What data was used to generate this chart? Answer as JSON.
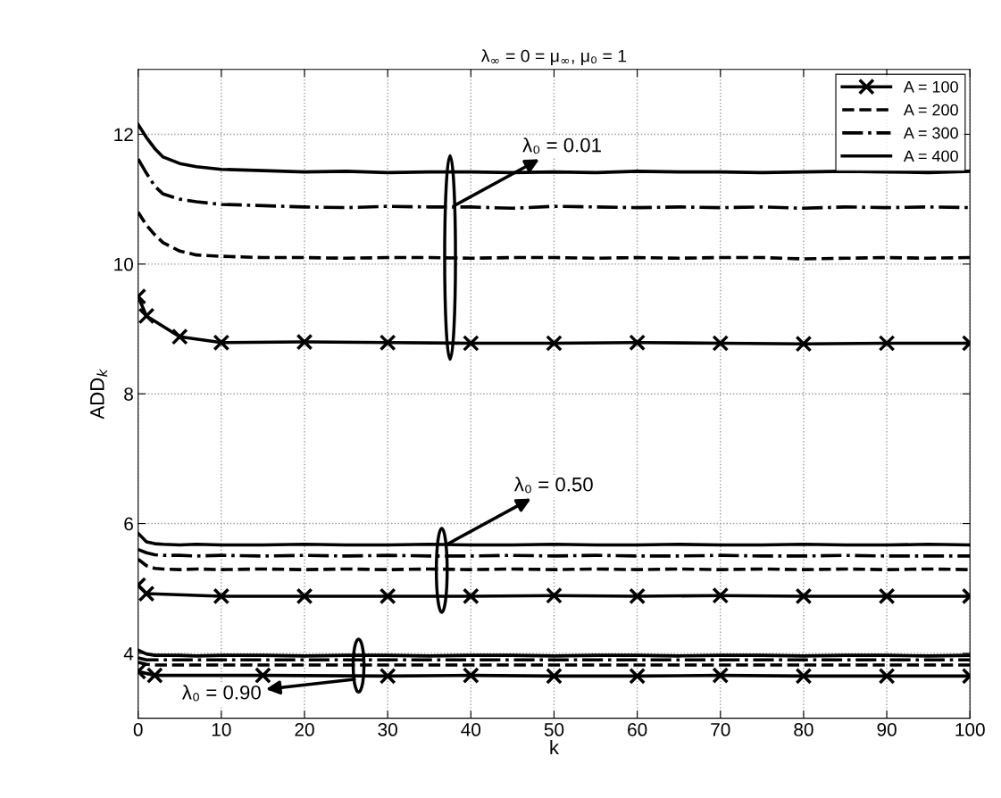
{
  "chart_data": {
    "type": "line",
    "title": "λ$_{∞}$ = 0 = μ$_{∞}$, μ₀ = 1",
    "xlabel": "k",
    "ylabel": "ADD$_{k}$",
    "x": [
      0,
      1,
      2,
      3,
      5,
      7,
      10,
      15,
      20,
      25,
      30,
      35,
      40,
      45,
      50,
      55,
      60,
      65,
      70,
      75,
      80,
      85,
      90,
      95,
      100
    ],
    "xlim": [
      0,
      100
    ],
    "xticks": [
      0,
      10,
      20,
      30,
      40,
      50,
      60,
      70,
      80,
      90,
      100
    ],
    "ylim": [
      3,
      13
    ],
    "yticks": [
      4,
      6,
      8,
      10,
      12
    ],
    "grid": true,
    "legend": "top right",
    "series": [
      {
        "name": "A = 100",
        "color": "#000000",
        "line_style": "solid",
        "marker": "cross",
        "x": [
          0,
          1,
          5,
          10,
          20,
          30,
          40,
          50,
          60,
          70,
          80,
          90,
          100
        ],
        "values": [
          9.5,
          9.2,
          8.88,
          8.79,
          8.8,
          8.79,
          8.78,
          8.78,
          8.79,
          8.78,
          8.77,
          8.78,
          8.78
        ]
      },
      {
        "name": "A = 200",
        "color": "#000000",
        "line_style": "dashed",
        "marker": "none",
        "values": [
          10.8,
          10.6,
          10.45,
          10.33,
          10.2,
          10.14,
          10.12,
          10.1,
          10.1,
          10.09,
          10.1,
          10.1,
          10.09,
          10.1,
          10.1,
          10.09,
          10.1,
          10.09,
          10.1,
          10.1,
          10.08,
          10.09,
          10.1,
          10.09,
          10.1
        ]
      },
      {
        "name": "A = 300",
        "color": "#000000",
        "line_style": "dashdot",
        "marker": "none",
        "values": [
          11.62,
          11.4,
          11.2,
          11.08,
          11.0,
          10.96,
          10.92,
          10.9,
          10.88,
          10.87,
          10.89,
          10.88,
          10.88,
          10.86,
          10.89,
          10.88,
          10.87,
          10.88,
          10.87,
          10.88,
          10.86,
          10.88,
          10.87,
          10.88,
          10.87
        ]
      },
      {
        "name": "A = 400",
        "color": "#000000",
        "line_style": "solid",
        "marker": "none",
        "values": [
          12.15,
          11.95,
          11.78,
          11.65,
          11.55,
          11.5,
          11.46,
          11.44,
          11.42,
          11.43,
          11.41,
          11.42,
          11.42,
          11.41,
          11.42,
          11.41,
          11.43,
          11.42,
          11.42,
          11.41,
          11.42,
          11.43,
          11.42,
          11.41,
          11.43
        ]
      },
      {
        "color": "#000000",
        "line_style": "solid",
        "marker": "cross",
        "x": [
          0,
          1,
          10,
          20,
          30,
          40,
          50,
          60,
          70,
          80,
          90,
          100
        ],
        "values": [
          5.05,
          4.92,
          4.88,
          4.88,
          4.88,
          4.88,
          4.89,
          4.88,
          4.89,
          4.88,
          4.88,
          4.88
        ]
      },
      {
        "color": "#000000",
        "line_style": "dashed",
        "marker": "none",
        "values": [
          5.45,
          5.35,
          5.31,
          5.3,
          5.29,
          5.3,
          5.29,
          5.3,
          5.29,
          5.3,
          5.29,
          5.3,
          5.29,
          5.3,
          5.29,
          5.3,
          5.29,
          5.3,
          5.29,
          5.3,
          5.29,
          5.3,
          5.29,
          5.3,
          5.29
        ]
      },
      {
        "color": "#000000",
        "line_style": "dashdot",
        "marker": "none",
        "values": [
          5.6,
          5.55,
          5.52,
          5.51,
          5.51,
          5.5,
          5.51,
          5.5,
          5.51,
          5.5,
          5.51,
          5.5,
          5.5,
          5.51,
          5.5,
          5.51,
          5.5,
          5.5,
          5.51,
          5.5,
          5.5,
          5.51,
          5.5,
          5.5,
          5.5
        ]
      },
      {
        "color": "#000000",
        "line_style": "solid",
        "marker": "none",
        "values": [
          5.85,
          5.72,
          5.69,
          5.68,
          5.67,
          5.68,
          5.67,
          5.67,
          5.68,
          5.67,
          5.67,
          5.68,
          5.67,
          5.67,
          5.68,
          5.67,
          5.67,
          5.68,
          5.67,
          5.67,
          5.68,
          5.67,
          5.67,
          5.68,
          5.67
        ]
      },
      {
        "color": "#000000",
        "line_style": "solid",
        "marker": "cross",
        "x": [
          0,
          2,
          15,
          30,
          40,
          50,
          60,
          70,
          80,
          90,
          100
        ],
        "values": [
          3.72,
          3.66,
          3.66,
          3.65,
          3.66,
          3.65,
          3.65,
          3.66,
          3.65,
          3.65,
          3.65
        ]
      },
      {
        "color": "#000000",
        "line_style": "dashed",
        "marker": "none",
        "values": [
          3.86,
          3.83,
          3.82,
          3.82,
          3.82,
          3.82,
          3.82,
          3.82,
          3.82,
          3.82,
          3.82,
          3.82,
          3.82,
          3.82,
          3.82,
          3.82,
          3.82,
          3.82,
          3.82,
          3.82,
          3.82,
          3.82,
          3.82,
          3.82,
          3.82
        ]
      },
      {
        "color": "#000000",
        "line_style": "dashdot",
        "marker": "none",
        "values": [
          3.93,
          3.9,
          3.9,
          3.9,
          3.9,
          3.9,
          3.9,
          3.9,
          3.9,
          3.9,
          3.9,
          3.9,
          3.9,
          3.9,
          3.9,
          3.9,
          3.9,
          3.9,
          3.9,
          3.9,
          3.9,
          3.9,
          3.9,
          3.9,
          3.9
        ]
      },
      {
        "color": "#000000",
        "line_style": "solid",
        "marker": "none",
        "values": [
          4.05,
          3.99,
          3.97,
          3.97,
          3.97,
          3.96,
          3.97,
          3.97,
          3.96,
          3.97,
          3.97,
          3.96,
          3.97,
          3.97,
          3.96,
          3.97,
          3.97,
          3.96,
          3.97,
          3.97,
          3.96,
          3.97,
          3.97,
          3.96,
          3.97
        ]
      }
    ],
    "annotations": [
      {
        "text": "λ₀ = 0.01",
        "x": 38.0,
        "y": 10.9
      },
      {
        "text": "λ₀ = 0.50",
        "x": 37.0,
        "y": 5.67
      },
      {
        "text": "λ₀ = 0.90",
        "x": 26.0,
        "y": 3.6
      }
    ]
  }
}
